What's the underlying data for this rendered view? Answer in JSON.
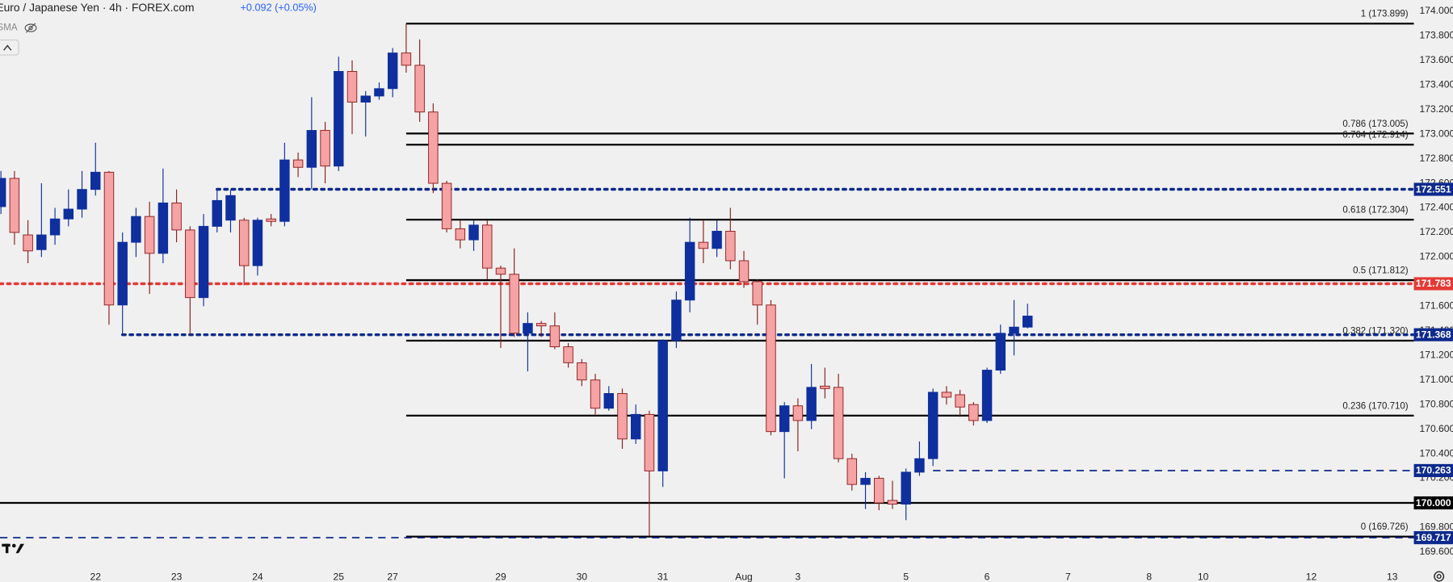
{
  "chart_data": {
    "type": "candlestick",
    "title": "Euro / Japanese Yen · 4h · FOREX.com",
    "change_label": "+0.092 (+0.05%)",
    "indicator_label": "SMA",
    "up_color": "#0f2f9e",
    "down_color": "#f5a3a5",
    "down_border": "#8c1c1c",
    "grid": false,
    "xlim": [
      -0.07,
      104.6
    ],
    "ylim": [
      169.508,
      174.091
    ],
    "xticks": [
      {
        "value": 7,
        "label": "22"
      },
      {
        "value": 13,
        "label": "23"
      },
      {
        "value": 19,
        "label": "24"
      },
      {
        "value": 25,
        "label": "25"
      },
      {
        "value": 29,
        "label": "27"
      },
      {
        "value": 37,
        "label": "29"
      },
      {
        "value": 43,
        "label": "30"
      },
      {
        "value": 49,
        "label": "31"
      },
      {
        "value": 55,
        "label": "Aug"
      },
      {
        "value": 59,
        "label": "3"
      },
      {
        "value": 67,
        "label": "5"
      },
      {
        "value": 73,
        "label": "6"
      },
      {
        "value": 79,
        "label": "7"
      },
      {
        "value": 85,
        "label": "8"
      },
      {
        "value": 89,
        "label": "10"
      },
      {
        "value": 97,
        "label": "12"
      },
      {
        "value": 103,
        "label": "13"
      }
    ],
    "yticks": [
      {
        "value": 169.6,
        "label": "169.600"
      },
      {
        "value": 169.8,
        "label": "169.800"
      },
      {
        "value": 170.0,
        "label": "170.000"
      },
      {
        "value": 170.2,
        "label": "170.200"
      },
      {
        "value": 170.4,
        "label": "170.400"
      },
      {
        "value": 170.6,
        "label": "170.600"
      },
      {
        "value": 170.8,
        "label": "170.800"
      },
      {
        "value": 171.0,
        "label": "171.000"
      },
      {
        "value": 171.2,
        "label": "171.200"
      },
      {
        "value": 171.4,
        "label": "171.400"
      },
      {
        "value": 171.6,
        "label": "171.600"
      },
      {
        "value": 171.8,
        "label": "171.800"
      },
      {
        "value": 172.0,
        "label": "172.000"
      },
      {
        "value": 172.2,
        "label": "172.200"
      },
      {
        "value": 172.4,
        "label": "172.400"
      },
      {
        "value": 172.6,
        "label": "172.600"
      },
      {
        "value": 172.8,
        "label": "172.800"
      },
      {
        "value": 173.0,
        "label": "173.000"
      },
      {
        "value": 173.2,
        "label": "173.200"
      },
      {
        "value": 173.4,
        "label": "173.400"
      },
      {
        "value": 173.6,
        "label": "173.600"
      },
      {
        "value": 173.8,
        "label": "173.800"
      },
      {
        "value": 174.0,
        "label": "174.000"
      }
    ],
    "open": [
      172.41,
      172.64,
      172.18,
      172.06,
      172.18,
      172.31,
      172.39,
      172.55,
      172.69,
      171.61,
      172.12,
      172.33,
      172.03,
      172.44,
      172.22,
      171.67,
      172.25,
      172.3,
      172.3,
      171.93,
      172.31,
      172.29,
      172.79,
      172.73,
      173.03,
      172.74,
      173.51,
      173.26,
      173.31,
      173.37,
      173.66,
      173.56,
      173.18,
      172.6,
      172.23,
      172.14,
      172.26,
      171.91,
      171.86,
      171.38,
      171.46,
      171.44,
      171.27,
      171.14,
      171.0,
      170.77,
      170.89,
      170.52,
      170.72,
      170.26,
      171.32,
      171.65,
      172.12,
      172.07,
      172.21,
      171.97,
      171.8,
      171.61,
      170.58,
      170.79,
      170.67,
      170.95,
      170.94,
      170.36,
      170.15,
      170.2,
      170.02,
      169.99,
      170.25,
      170.36,
      170.9,
      170.88,
      170.8,
      170.67,
      171.08,
      171.38,
      171.43
    ],
    "high": [
      172.7,
      172.7,
      172.3,
      172.6,
      172.4,
      172.55,
      172.7,
      172.93,
      172.7,
      172.2,
      172.4,
      172.45,
      172.72,
      172.55,
      172.25,
      172.35,
      172.55,
      172.55,
      172.32,
      172.32,
      172.35,
      172.93,
      172.85,
      173.3,
      173.1,
      173.63,
      173.6,
      173.35,
      173.42,
      173.7,
      173.9,
      173.77,
      173.25,
      172.62,
      172.3,
      172.3,
      172.3,
      171.93,
      172.07,
      171.55,
      171.48,
      171.55,
      171.3,
      171.17,
      171.05,
      170.95,
      170.93,
      170.8,
      170.75,
      171.33,
      171.72,
      172.32,
      172.3,
      172.3,
      172.4,
      172.05,
      171.82,
      171.65,
      170.82,
      170.85,
      171.13,
      171.1,
      171.05,
      170.4,
      170.25,
      170.22,
      170.18,
      170.28,
      170.5,
      170.93,
      170.95,
      170.92,
      170.82,
      171.1,
      171.45,
      171.65,
      171.62
    ],
    "low": [
      172.35,
      172.1,
      171.95,
      172.0,
      172.1,
      172.25,
      172.32,
      172.5,
      171.45,
      171.37,
      172.0,
      171.7,
      171.95,
      172.12,
      171.37,
      171.6,
      172.2,
      172.2,
      171.77,
      171.85,
      172.25,
      172.25,
      172.65,
      172.55,
      172.6,
      172.7,
      173.0,
      172.98,
      173.28,
      173.3,
      173.5,
      173.1,
      172.52,
      172.2,
      172.07,
      172.05,
      171.82,
      171.26,
      171.35,
      171.07,
      171.35,
      171.25,
      171.1,
      170.95,
      170.72,
      170.75,
      170.44,
      170.48,
      169.73,
      170.13,
      171.26,
      171.55,
      171.95,
      172.0,
      171.9,
      171.75,
      171.45,
      170.55,
      170.2,
      170.42,
      170.6,
      170.85,
      170.33,
      170.1,
      169.95,
      169.94,
      169.95,
      169.86,
      170.22,
      170.3,
      170.8,
      170.7,
      170.63,
      170.65,
      171.05,
      171.2,
      171.42
    ],
    "close": [
      172.64,
      172.2,
      172.05,
      172.18,
      172.31,
      172.39,
      172.55,
      172.69,
      171.61,
      172.12,
      172.33,
      172.03,
      172.44,
      172.22,
      171.67,
      172.25,
      172.46,
      172.5,
      171.93,
      172.3,
      172.29,
      172.79,
      172.73,
      173.03,
      172.74,
      173.51,
      173.26,
      173.31,
      173.37,
      173.66,
      173.56,
      173.18,
      172.6,
      172.23,
      172.14,
      172.26,
      171.91,
      171.86,
      171.38,
      171.46,
      171.44,
      171.27,
      171.14,
      171.0,
      170.77,
      170.89,
      170.52,
      170.72,
      170.26,
      171.32,
      171.65,
      172.12,
      172.07,
      172.21,
      171.97,
      171.8,
      171.61,
      170.58,
      170.79,
      170.67,
      170.94,
      170.93,
      170.36,
      170.15,
      170.2,
      170.0,
      169.99,
      170.25,
      170.36,
      170.9,
      170.86,
      170.78,
      170.67,
      171.08,
      171.38,
      171.43,
      171.52
    ],
    "fib_levels": [
      {
        "value": 173.899,
        "label": "1 (173.899)"
      },
      {
        "value": 173.005,
        "label": "0.786 (173.005)"
      },
      {
        "value": 172.914,
        "label": "0.764 (172.914)"
      },
      {
        "value": 172.304,
        "label": "0.618 (172.304)"
      },
      {
        "value": 171.812,
        "label": "0.5 (171.812)"
      },
      {
        "value": 171.32,
        "label": "0.382 (171.320)"
      },
      {
        "value": 170.71,
        "label": "0.236 (170.710)"
      },
      {
        "value": 169.726,
        "label": "0 (169.726)"
      }
    ],
    "price_lines": [
      {
        "value": 172.551,
        "label": "172.551",
        "color": "#0d2a8c",
        "style": "dotted"
      },
      {
        "value": 171.783,
        "label": "171.783",
        "color": "#e53935",
        "style": "dotted"
      },
      {
        "value": 171.368,
        "label": "171.368",
        "color": "#0d2a8c",
        "style": "dotted"
      },
      {
        "value": 170.263,
        "label": "170.263",
        "color": "#0d2a8c",
        "style": "dashed"
      },
      {
        "value": 170.0,
        "label": "170.000",
        "color": "#000000",
        "style": "solid"
      },
      {
        "value": 169.717,
        "label": "169.717",
        "color": "#0d2a8c",
        "style": "dashed"
      }
    ]
  }
}
